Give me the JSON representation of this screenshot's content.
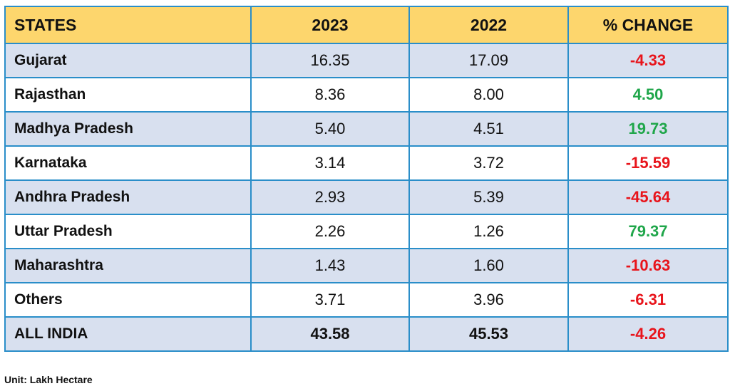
{
  "chart_data": {
    "type": "table",
    "columns": [
      "STATES",
      "2023",
      "2022",
      "% CHANGE"
    ],
    "rows": [
      {
        "state": "Gujarat",
        "y2023": "16.35",
        "y2022": "17.09",
        "change": "-4.33"
      },
      {
        "state": "Rajasthan",
        "y2023": "8.36",
        "y2022": "8.00",
        "change": "4.50"
      },
      {
        "state": "Madhya Pradesh",
        "y2023": "5.40",
        "y2022": "4.51",
        "change": "19.73"
      },
      {
        "state": "Karnataka",
        "y2023": "3.14",
        "y2022": "3.72",
        "change": "-15.59"
      },
      {
        "state": "Andhra Pradesh",
        "y2023": "2.93",
        "y2022": "5.39",
        "change": "-45.64"
      },
      {
        "state": "Uttar Pradesh",
        "y2023": "2.26",
        "y2022": "1.26",
        "change": "79.37"
      },
      {
        "state": "Maharashtra",
        "y2023": "1.43",
        "y2022": "1.60",
        "change": "-10.63"
      },
      {
        "state": "Others",
        "y2023": "3.71",
        "y2022": "3.96",
        "change": "-6.31"
      }
    ],
    "total": {
      "state": "ALL INDIA",
      "y2023": "43.58",
      "y2022": "45.53",
      "change": "-4.26"
    },
    "unit_note": "Unit: Lakh Hectare",
    "colors": {
      "header_bg": "#fdd66d",
      "row_band": "#d8e0ef",
      "border": "#2a8ec9",
      "negative": "#e8141b",
      "positive": "#1fa64a"
    }
  }
}
